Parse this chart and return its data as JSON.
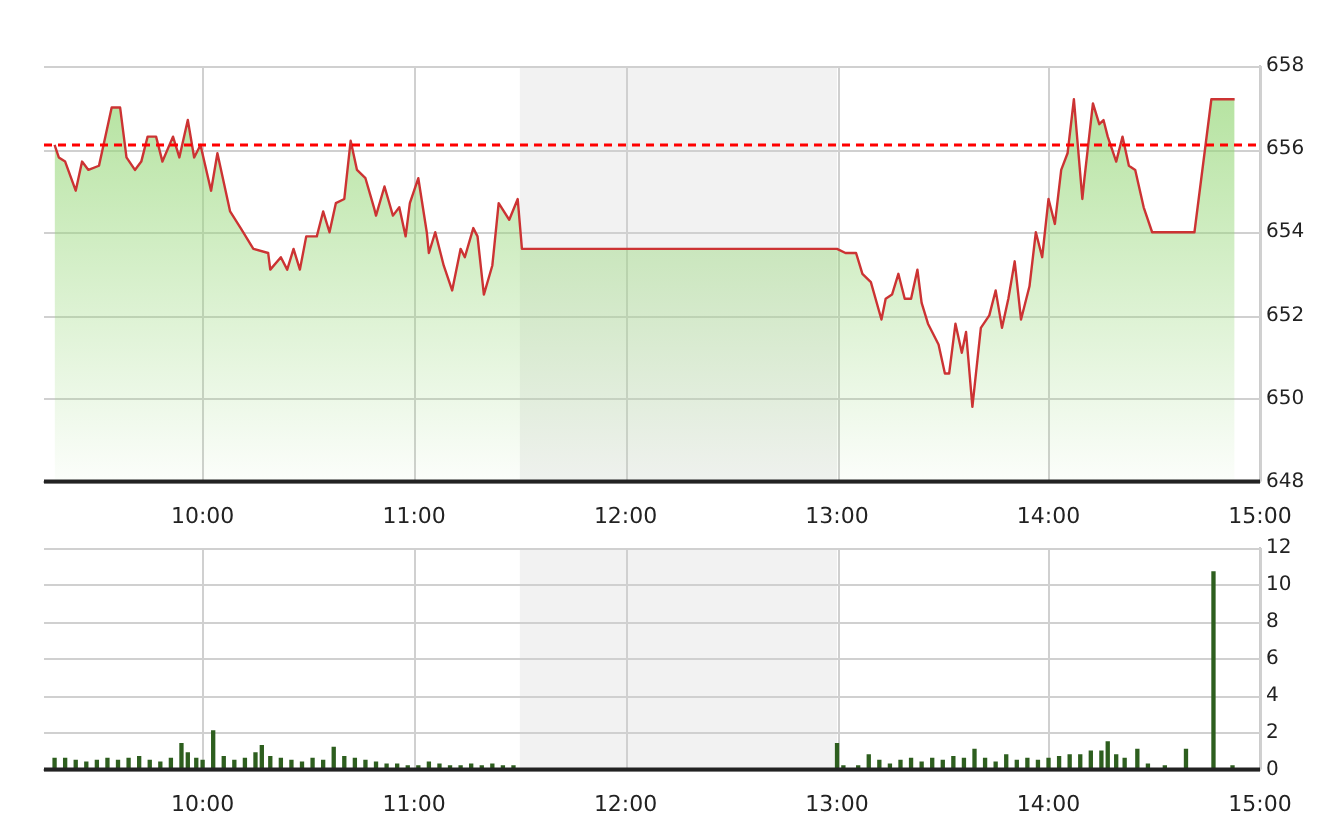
{
  "chart_data": [
    {
      "type": "area",
      "x": [
        9.3,
        9.32,
        9.35,
        9.4,
        9.43,
        9.46,
        9.51,
        9.54,
        9.57,
        9.61,
        9.64,
        9.68,
        9.71,
        9.74,
        9.78,
        9.81,
        9.86,
        9.89,
        9.93,
        9.96,
        9.99,
        10.04,
        10.07,
        10.13,
        10.18,
        10.24,
        10.31,
        10.32,
        10.37,
        10.4,
        10.43,
        10.46,
        10.49,
        10.54,
        10.57,
        10.6,
        10.63,
        10.67,
        10.7,
        10.73,
        10.77,
        10.81,
        10.82,
        10.86,
        10.9,
        10.93,
        10.96,
        10.98,
        11.02,
        11.06,
        11.07,
        11.1,
        11.14,
        11.18,
        11.22,
        11.24,
        11.28,
        11.3,
        11.33,
        11.37,
        11.4,
        11.45,
        11.49,
        11.51,
        13.0,
        13.04,
        13.09,
        13.12,
        13.16,
        13.21,
        13.23,
        13.26,
        13.29,
        13.32,
        13.35,
        13.38,
        13.4,
        13.43,
        13.48,
        13.51,
        13.53,
        13.56,
        13.59,
        13.61,
        13.64,
        13.68,
        13.72,
        13.75,
        13.78,
        13.81,
        13.84,
        13.87,
        13.91,
        13.94,
        13.97,
        14.0,
        14.03,
        14.06,
        14.09,
        14.12,
        14.16,
        14.17,
        14.21,
        14.24,
        14.26,
        14.28,
        14.32,
        14.35,
        14.38,
        14.41,
        14.45,
        14.49,
        14.69,
        14.77,
        14.88
      ],
      "series": [
        {
          "color": "#cc3333",
          "values": [
            656.1,
            655.8,
            655.7,
            655.0,
            655.7,
            655.5,
            655.6,
            656.3,
            657.0,
            657.0,
            655.8,
            655.5,
            655.7,
            656.3,
            656.3,
            655.7,
            656.3,
            655.8,
            656.7,
            655.8,
            656.1,
            655.0,
            655.9,
            654.5,
            654.1,
            653.6,
            653.5,
            653.1,
            653.4,
            653.1,
            653.6,
            653.1,
            653.9,
            653.9,
            654.5,
            654.0,
            654.7,
            654.8,
            656.2,
            655.5,
            655.3,
            654.6,
            654.4,
            655.1,
            654.4,
            654.6,
            653.9,
            654.7,
            655.3,
            654.0,
            653.5,
            654.0,
            653.2,
            652.6,
            653.6,
            653.4,
            654.1,
            653.9,
            652.5,
            653.2,
            654.7,
            654.3,
            654.8,
            653.6,
            653.6,
            653.5,
            653.5,
            653.0,
            652.8,
            651.9,
            652.4,
            652.5,
            653.0,
            652.4,
            652.4,
            653.1,
            652.3,
            651.8,
            651.3,
            650.6,
            650.6,
            651.8,
            651.1,
            651.6,
            649.8,
            651.7,
            652.0,
            652.6,
            651.7,
            652.4,
            653.3,
            651.9,
            652.7,
            654.0,
            653.4,
            654.8,
            654.2,
            655.5,
            655.9,
            657.2,
            654.8,
            655.3,
            657.1,
            656.6,
            656.7,
            656.3,
            655.7,
            656.3,
            655.6,
            655.5,
            654.6,
            654.0,
            654.0,
            657.2,
            657.2
          ]
        }
      ],
      "xlim": [
        9.25,
        15
      ],
      "xticks": [
        {
          "value": 10,
          "label": "10:00"
        },
        {
          "value": 11,
          "label": "11:00"
        },
        {
          "value": 12,
          "label": "12:00"
        },
        {
          "value": 13,
          "label": "13:00"
        },
        {
          "value": 14,
          "label": "14:00"
        },
        {
          "value": 15,
          "label": "15:00"
        }
      ],
      "ylim": [
        648,
        658
      ],
      "yticks": [
        648,
        650,
        652,
        654,
        656,
        658
      ],
      "grid": true,
      "marker": "none",
      "ref_lines": [
        {
          "axis": "y",
          "value": 656.1,
          "color": "#ff0000",
          "line_style": "dashed"
        }
      ],
      "bands": [
        {
          "axis": "x",
          "from": 11.5,
          "to": 13,
          "color": "#f2f2f2"
        }
      ]
    },
    {
      "type": "bar",
      "x": [
        9.3,
        9.35,
        9.4,
        9.45,
        9.5,
        9.55,
        9.6,
        9.65,
        9.7,
        9.75,
        9.8,
        9.85,
        9.9,
        9.93,
        9.97,
        10.0,
        10.05,
        10.1,
        10.15,
        10.2,
        10.25,
        10.28,
        10.32,
        10.37,
        10.42,
        10.47,
        10.52,
        10.57,
        10.62,
        10.67,
        10.72,
        10.77,
        10.82,
        10.87,
        10.92,
        10.97,
        11.02,
        11.07,
        11.12,
        11.17,
        11.22,
        11.27,
        11.32,
        11.37,
        11.42,
        11.47,
        13.0,
        13.03,
        13.07,
        13.1,
        13.15,
        13.2,
        13.25,
        13.3,
        13.35,
        13.4,
        13.45,
        13.5,
        13.55,
        13.6,
        13.65,
        13.7,
        13.75,
        13.8,
        13.85,
        13.9,
        13.95,
        14.0,
        14.05,
        14.1,
        14.15,
        14.2,
        14.25,
        14.28,
        14.32,
        14.36,
        14.42,
        14.47,
        14.55,
        14.65,
        14.78,
        14.87
      ],
      "series": [
        {
          "color": "#2d5e1e",
          "values": [
            0.6,
            0.6,
            0.5,
            0.4,
            0.5,
            0.6,
            0.5,
            0.6,
            0.7,
            0.5,
            0.4,
            0.6,
            1.4,
            0.9,
            0.6,
            0.5,
            2.1,
            0.7,
            0.5,
            0.6,
            0.9,
            1.3,
            0.7,
            0.6,
            0.5,
            0.4,
            0.6,
            0.5,
            1.2,
            0.7,
            0.6,
            0.5,
            0.4,
            0.3,
            0.3,
            0.2,
            0.2,
            0.4,
            0.3,
            0.2,
            0.2,
            0.3,
            0.2,
            0.3,
            0.2,
            0.2,
            1.4,
            0.2,
            null,
            0.2,
            0.8,
            0.5,
            0.3,
            0.5,
            0.6,
            0.4,
            0.6,
            0.5,
            0.7,
            0.6,
            1.1,
            0.6,
            0.4,
            0.8,
            0.5,
            0.6,
            0.5,
            0.6,
            0.7,
            0.8,
            0.8,
            1.0,
            1.0,
            1.5,
            0.8,
            0.6,
            1.1,
            0.3,
            0.2,
            1.1,
            10.7,
            0.2
          ]
        }
      ],
      "xlim": [
        9.25,
        15
      ],
      "xticks": [
        {
          "value": 10,
          "label": "10:00"
        },
        {
          "value": 11,
          "label": "11:00"
        },
        {
          "value": 12,
          "label": "12:00"
        },
        {
          "value": 13,
          "label": "13:00"
        },
        {
          "value": 14,
          "label": "14:00"
        },
        {
          "value": 15,
          "label": "15:00"
        }
      ],
      "ylim": [
        0,
        12
      ],
      "yticks": [
        0,
        2,
        4,
        6,
        8,
        10,
        12
      ],
      "grid": true,
      "bands": [
        {
          "axis": "x",
          "from": 11.5,
          "to": 13,
          "color": "#f2f2f2"
        }
      ]
    }
  ]
}
